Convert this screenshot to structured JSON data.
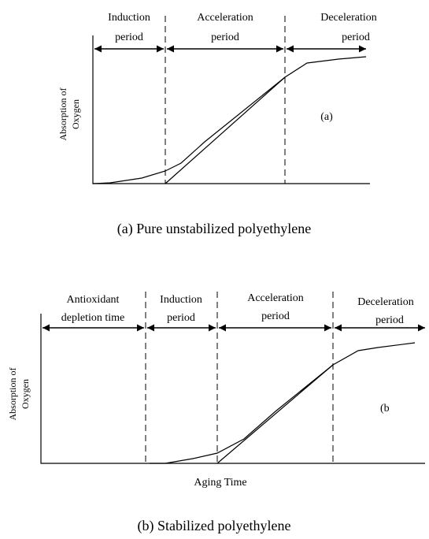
{
  "panels": [
    {
      "phases": [
        [
          "Induction",
          "period"
        ],
        [
          "Acceleration",
          "period"
        ],
        [
          "Deceleration",
          "period"
        ]
      ],
      "y_label": [
        "Absorption of",
        "Oxygen"
      ],
      "marker": "(a)",
      "caption": "(a) Pure unstabilized polyethylene"
    },
    {
      "phases": [
        [
          "Antioxidant",
          "depletion time"
        ],
        [
          "Induction",
          "period"
        ],
        [
          "Acceleration",
          "period"
        ],
        [
          "Deceleration",
          "period"
        ]
      ],
      "y_label": [
        "Absorption of",
        "Oxygen"
      ],
      "marker": "(b",
      "x_label": "Aging Time",
      "caption": "(b) Stabilized polyethylene"
    }
  ]
}
